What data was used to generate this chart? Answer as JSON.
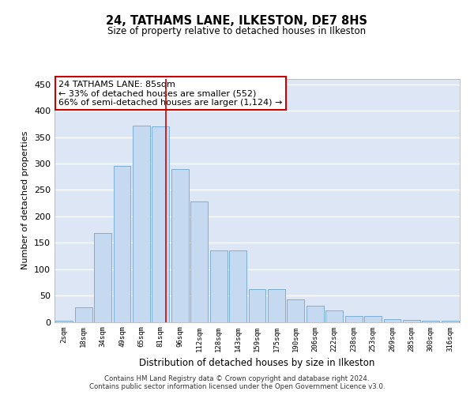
{
  "title": "24, TATHAMS LANE, ILKESTON, DE7 8HS",
  "subtitle": "Size of property relative to detached houses in Ilkeston",
  "xlabel": "Distribution of detached houses by size in Ilkeston",
  "ylabel": "Number of detached properties",
  "categories": [
    "2sqm",
    "18sqm",
    "34sqm",
    "49sqm",
    "65sqm",
    "81sqm",
    "96sqm",
    "112sqm",
    "128sqm",
    "143sqm",
    "159sqm",
    "175sqm",
    "190sqm",
    "206sqm",
    "222sqm",
    "238sqm",
    "253sqm",
    "269sqm",
    "285sqm",
    "300sqm",
    "316sqm"
  ],
  "values": [
    2,
    28,
    168,
    295,
    372,
    370,
    290,
    228,
    135,
    135,
    62,
    62,
    42,
    30,
    22,
    11,
    11,
    5,
    3,
    2,
    2
  ],
  "bar_color": "#c5d9f1",
  "bar_edge_color": "#7bafd4",
  "bg_color": "#dce6f5",
  "annotation_text": "24 TATHAMS LANE: 85sqm\n← 33% of detached houses are smaller (552)\n66% of semi-detached houses are larger (1,124) →",
  "annotation_box_color": "#ffffff",
  "annotation_box_edge": "#cc0000",
  "vline_color": "#cc0000",
  "ylim": [
    0,
    460
  ],
  "yticks": [
    0,
    50,
    100,
    150,
    200,
    250,
    300,
    350,
    400,
    450
  ],
  "footer": "Contains HM Land Registry data © Crown copyright and database right 2024.\nContains public sector information licensed under the Open Government Licence v3.0."
}
